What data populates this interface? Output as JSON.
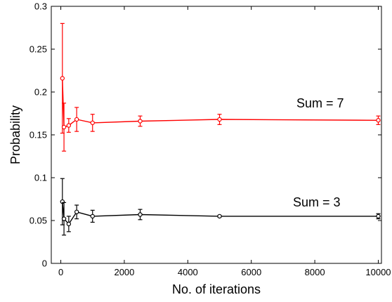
{
  "chart_data": {
    "type": "line",
    "xlabel": "No. of iterations",
    "ylabel": "Probability",
    "xlim": [
      -300,
      10100
    ],
    "ylim": [
      0,
      0.3
    ],
    "xticks": [
      0,
      2000,
      4000,
      6000,
      8000,
      10000
    ],
    "xtick_labels": [
      "0",
      "2000",
      "4000",
      "6000",
      "8000",
      "10000"
    ],
    "yticks": [
      0,
      0.05,
      0.1,
      0.15,
      0.2,
      0.25,
      0.3
    ],
    "ytick_labels": [
      "0",
      "0.05",
      "0.1",
      "0.15",
      "0.2",
      "0.25",
      "0.3"
    ],
    "grid": false,
    "series": [
      {
        "label": "Sum = 7",
        "color": "#ff0000",
        "x": [
          50,
          100,
          250,
          500,
          1000,
          2500,
          5000,
          10000
        ],
        "y": [
          0.216,
          0.159,
          0.161,
          0.168,
          0.164,
          0.166,
          0.168,
          0.167
        ],
        "err": [
          0.064,
          0.028,
          0.008,
          0.014,
          0.01,
          0.006,
          0.006,
          0.005
        ]
      },
      {
        "label": "Sum = 3",
        "color": "#000000",
        "x": [
          50,
          100,
          250,
          500,
          1000,
          2500,
          5000,
          10000
        ],
        "y": [
          0.072,
          0.052,
          0.046,
          0.06,
          0.055,
          0.057,
          0.055,
          0.055
        ],
        "err": [
          0.027,
          0.019,
          0.009,
          0.008,
          0.007,
          0.006,
          0.001,
          0.003
        ]
      }
    ]
  }
}
